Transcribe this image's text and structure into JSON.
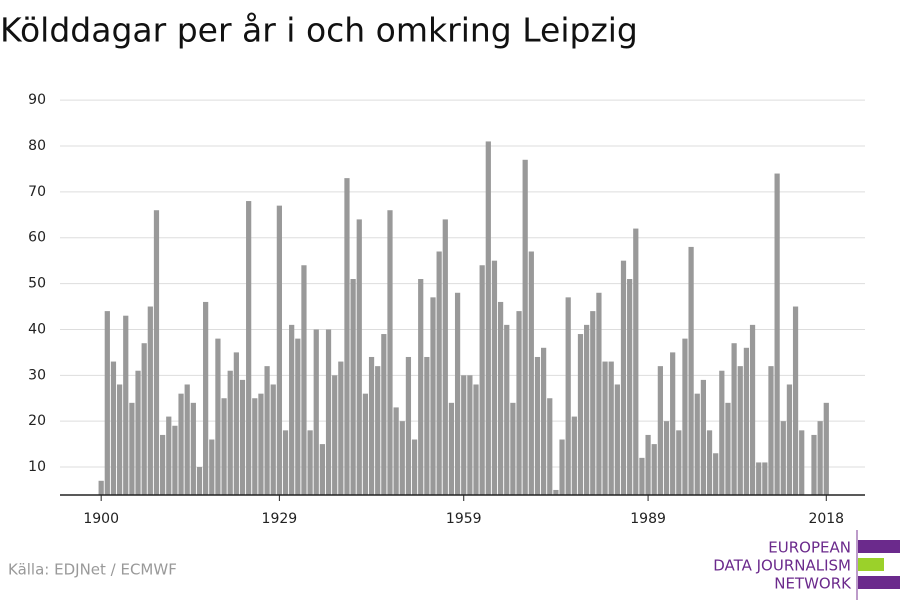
{
  "chart_data": {
    "type": "bar",
    "title": "Kölddagar per år i och omkring Leipzig",
    "source": "Källa: EDJNet / ECMWF",
    "logo": [
      "EUROPEAN",
      "DATA JOURNALISM",
      "NETWORK"
    ],
    "color": "#999999",
    "x": [
      1900,
      1901,
      1902,
      1903,
      1904,
      1905,
      1906,
      1907,
      1908,
      1909,
      1910,
      1911,
      1912,
      1913,
      1914,
      1915,
      1916,
      1917,
      1918,
      1919,
      1920,
      1921,
      1922,
      1923,
      1924,
      1925,
      1926,
      1927,
      1928,
      1929,
      1930,
      1931,
      1932,
      1933,
      1934,
      1935,
      1936,
      1937,
      1938,
      1939,
      1940,
      1941,
      1942,
      1943,
      1944,
      1945,
      1946,
      1947,
      1948,
      1949,
      1950,
      1951,
      1952,
      1953,
      1954,
      1955,
      1956,
      1957,
      1958,
      1959,
      1960,
      1961,
      1962,
      1963,
      1964,
      1965,
      1966,
      1967,
      1968,
      1969,
      1970,
      1971,
      1972,
      1973,
      1974,
      1975,
      1976,
      1977,
      1978,
      1979,
      1980,
      1981,
      1982,
      1983,
      1984,
      1985,
      1986,
      1987,
      1988,
      1989,
      1990,
      1991,
      1992,
      1993,
      1994,
      1995,
      1996,
      1997,
      1998,
      1999,
      2000,
      2001,
      2002,
      2003,
      2004,
      2005,
      2006,
      2007,
      2008,
      2009,
      2010,
      2011,
      2012,
      2013,
      2014,
      2015,
      2016,
      2017,
      2018
    ],
    "values": [
      7,
      44,
      33,
      28,
      43,
      24,
      31,
      37,
      45,
      66,
      17,
      21,
      19,
      26,
      28,
      24,
      10,
      46,
      16,
      38,
      25,
      31,
      35,
      29,
      68,
      25,
      26,
      32,
      28,
      67,
      18,
      41,
      38,
      54,
      18,
      40,
      15,
      40,
      30,
      33,
      73,
      51,
      64,
      26,
      34,
      32,
      39,
      66,
      23,
      20,
      34,
      16,
      51,
      34,
      47,
      57,
      64,
      24,
      48,
      30,
      30,
      28,
      54,
      81,
      55,
      46,
      41,
      24,
      44,
      77,
      57,
      34,
      36,
      25,
      5,
      16,
      47,
      21,
      39,
      41,
      44,
      48,
      33,
      33,
      28,
      55,
      51,
      62,
      12,
      17,
      15,
      32,
      20,
      35,
      18,
      38,
      58,
      26,
      29,
      18,
      13,
      31,
      24,
      37,
      32,
      36,
      41,
      11,
      11,
      32,
      74,
      20,
      28,
      45,
      18,
      4,
      17,
      20,
      24
    ],
    "xlim": [
      1893.3,
      2024.3
    ],
    "xticks": [
      1900,
      1929,
      1959,
      1989,
      2018
    ],
    "ylim": [
      3.9,
      92
    ],
    "yticks": [
      10,
      20,
      30,
      40,
      50,
      60,
      70,
      80,
      90
    ],
    "grid": true
  }
}
